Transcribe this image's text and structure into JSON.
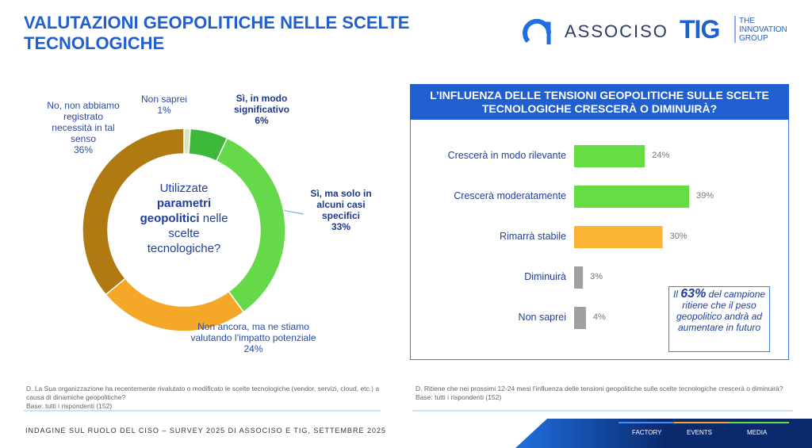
{
  "header": {
    "title": "VALUTAZIONI GEOPOLITICHE NELLE SCELTE TECNOLOGICHE",
    "logo_associso": "ASSOCISO",
    "logo_tig": "TIG",
    "logo_tig_tagline": "THE INNOVATION GROUP"
  },
  "chart_data": [
    {
      "type": "donut",
      "center_text": {
        "before": "Utilizzate",
        "bold": "parametri geopolitici",
        "after": "nelle scelte tecnologiche?"
      },
      "categories": [
        "Non saprei",
        "Sì, in modo significativo",
        "Sì, ma solo in alcuni casi specifici",
        "Non ancora, ma ne stiamo valutando l’impatto potenziale",
        "No, non abbiamo registrato necessità in tal senso"
      ],
      "values": [
        1,
        6,
        33,
        24,
        36
      ],
      "value_labels": [
        "1%",
        "6%",
        "33%",
        "24%",
        "36%"
      ],
      "colors": [
        "#d6e6c2",
        "#3db83a",
        "#66d94a",
        "#f5a827",
        "#b07a12"
      ]
    },
    {
      "type": "hbar",
      "title": "L’INFLUENZA DELLE TENSIONI GEOPOLITICHE SULLE SCELTE TECNOLOGICHE CRESCERÀ O DIMINUIRÀ?",
      "categories": [
        "Crescerà in modo rilevante",
        "Crescerà moderatamente",
        "Rimarrà stabile",
        "Diminuirà",
        "Non saprei"
      ],
      "values": [
        24,
        39,
        30,
        3,
        4
      ],
      "value_labels": [
        "24%",
        "39%",
        "30%",
        "3%",
        "4%"
      ],
      "colors": [
        "#66dd44",
        "#66dd44",
        "#fbb532",
        "#a0a0a0",
        "#a0a0a0"
      ],
      "annotation": {
        "before": "Il",
        "highlight": "63%",
        "after": "del campione ritiene che il peso geopolitico andrà ad aumentare in futuro"
      }
    }
  ],
  "notes": [
    {
      "question": "D. La Sua organizzazione ha recentemente rivalutato o modificato le scelte tecnologiche (vendor, servizi, cloud, etc.) a causa di dinamiche geopolitiche?",
      "base": "Base: tutti i rispondenti (152)"
    },
    {
      "question": "D. Ritiene che nei prossimi 12-24 mesi l’influenza delle tensioni geopolitiche sulle scelte tecnologiche crescerà o diminuirà?",
      "base": "Base: tutti i rispondenti (152)"
    }
  ],
  "footer": {
    "text": "INDAGINE SUL RUOLO DEL CISO – SURVEY 2025 DI ASSOCISO E TIG, SETTEMBRE 2025",
    "nav": [
      "FACTORY",
      "EVENTS",
      "MEDIA"
    ]
  }
}
